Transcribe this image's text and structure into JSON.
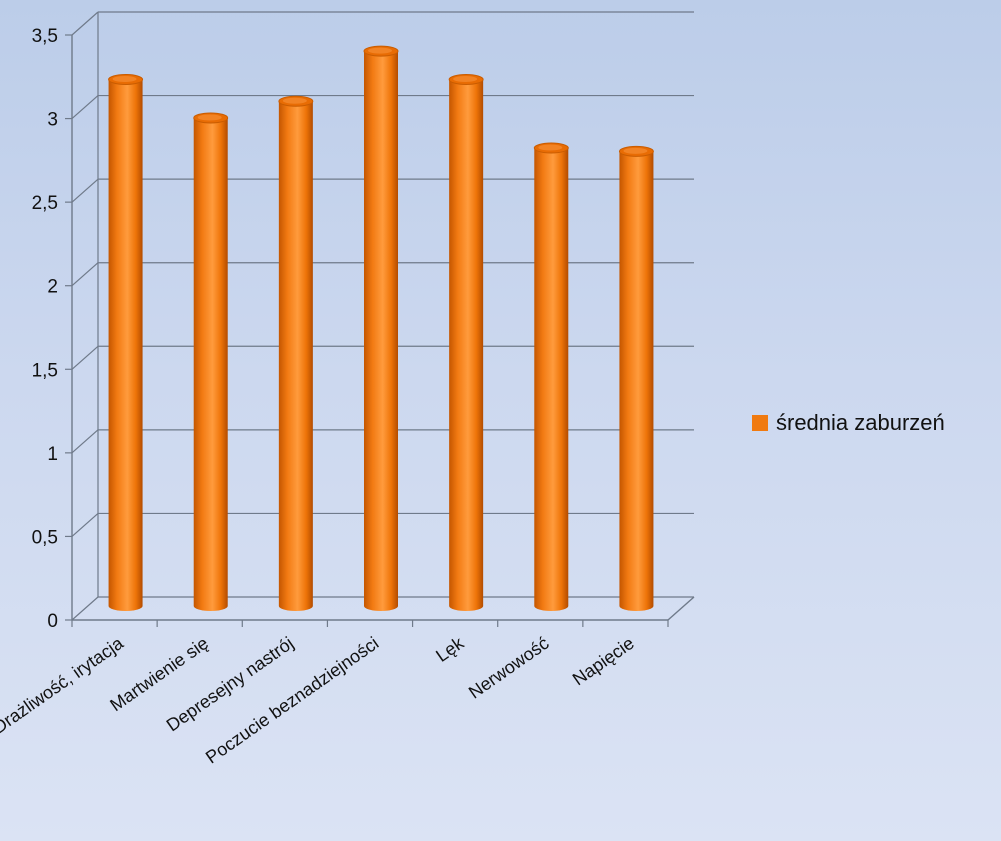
{
  "chart_data": {
    "type": "bar",
    "style": "3d-cylinder",
    "categories": [
      "Drażliwość, irytacja",
      "Martwienie się",
      "Depresejny nastrój",
      "Poczucie beznadziejności",
      "Lęk",
      "Nerwowość",
      "Napięcie"
    ],
    "series": [
      {
        "name": "średnia zaburzeń",
        "values": [
          3.15,
          2.92,
          3.02,
          3.32,
          3.15,
          2.74,
          2.72
        ]
      }
    ],
    "ylim": [
      0,
      3.5
    ],
    "yticks": [
      "0",
      "0,5",
      "1",
      "1,5",
      "2",
      "2,5",
      "3",
      "3,5"
    ],
    "grid": true,
    "legend_position": "right",
    "colors": {
      "bar": "#f07a10",
      "bar_dark": "#b84f00",
      "bar_light": "#ff9a3a",
      "grid": "#6f7a8a"
    }
  }
}
